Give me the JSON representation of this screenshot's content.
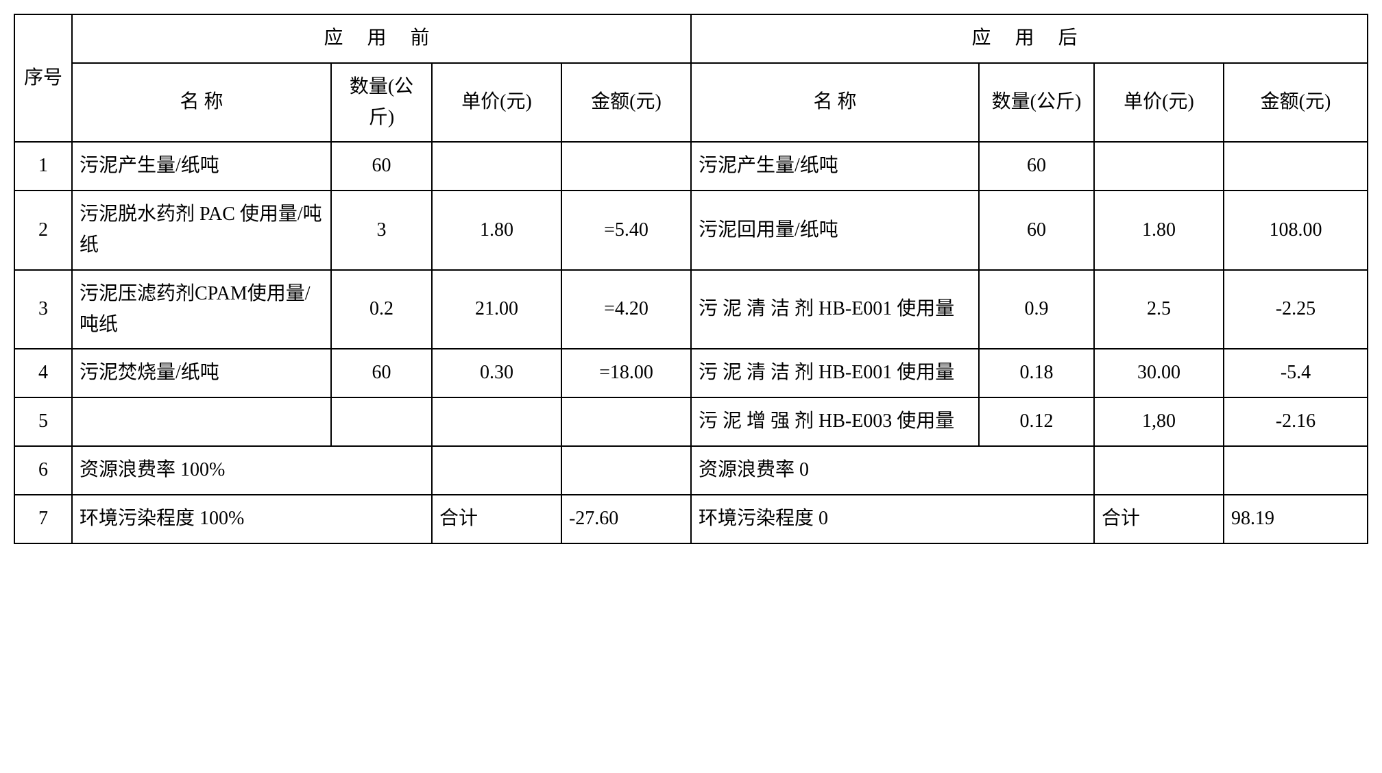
{
  "header": {
    "seq": "序号",
    "before": "应 用 前",
    "after": "应 用 后",
    "name": "名    称",
    "qty": "数量(公斤)",
    "price": "单价(元)",
    "amount": "金额(元)",
    "name2": "名    称",
    "qty2": "数量(公斤)",
    "price2": "单价(元)",
    "amount2": "金额(元)"
  },
  "rows": [
    {
      "seq": "1",
      "b_name": "污泥产生量/纸吨",
      "b_qty": "60",
      "b_price": "",
      "b_amount": "",
      "a_name": "污泥产生量/纸吨",
      "a_qty": "60",
      "a_price": "",
      "a_amount": ""
    },
    {
      "seq": "2",
      "b_name": "污泥脱水药剂 PAC 使用量/吨纸",
      "b_qty": "3",
      "b_price": "1.80",
      "b_amount": "=5.40",
      "a_name": "污泥回用量/纸吨",
      "a_qty": "60",
      "a_price": "1.80",
      "a_amount": "108.00"
    },
    {
      "seq": "3",
      "b_name": "污泥压滤药剂CPAM使用量/吨纸",
      "b_qty": "0.2",
      "b_price": "21.00",
      "b_amount": "=4.20",
      "a_name": "污 泥 清 洁 剂 HB-E001 使用量",
      "a_qty": "0.9",
      "a_price": "2.5",
      "a_amount": "-2.25"
    },
    {
      "seq": "4",
      "b_name": "污泥焚烧量/纸吨",
      "b_qty": "60",
      "b_price": "0.30",
      "b_amount": "=18.00",
      "a_name": "污 泥 清 洁 剂 HB-E001 使用量",
      "a_qty": "0.18",
      "a_price": "30.00",
      "a_amount": "-5.4"
    },
    {
      "seq": "5",
      "b_name": "",
      "b_qty": "",
      "b_price": "",
      "b_amount": "",
      "a_name": "污 泥 增 强 剂 HB-E003 使用量",
      "a_qty": "0.12",
      "a_price": "1,80",
      "a_amount": "-2.16"
    }
  ],
  "row6": {
    "seq": "6",
    "b_name": "资源浪费率 100%",
    "a_name": "资源浪费率 0"
  },
  "row7": {
    "seq": "7",
    "b_name": "环境污染程度 100%",
    "b_total_label": "合计",
    "b_total": "-27.60",
    "a_name": "环境污染程度 0",
    "a_total_label": "合计",
    "a_total": "98.19"
  },
  "style": {
    "border_color": "#000000",
    "background_color": "#ffffff",
    "font_size_pt": 28,
    "font_family": "SimSun"
  }
}
